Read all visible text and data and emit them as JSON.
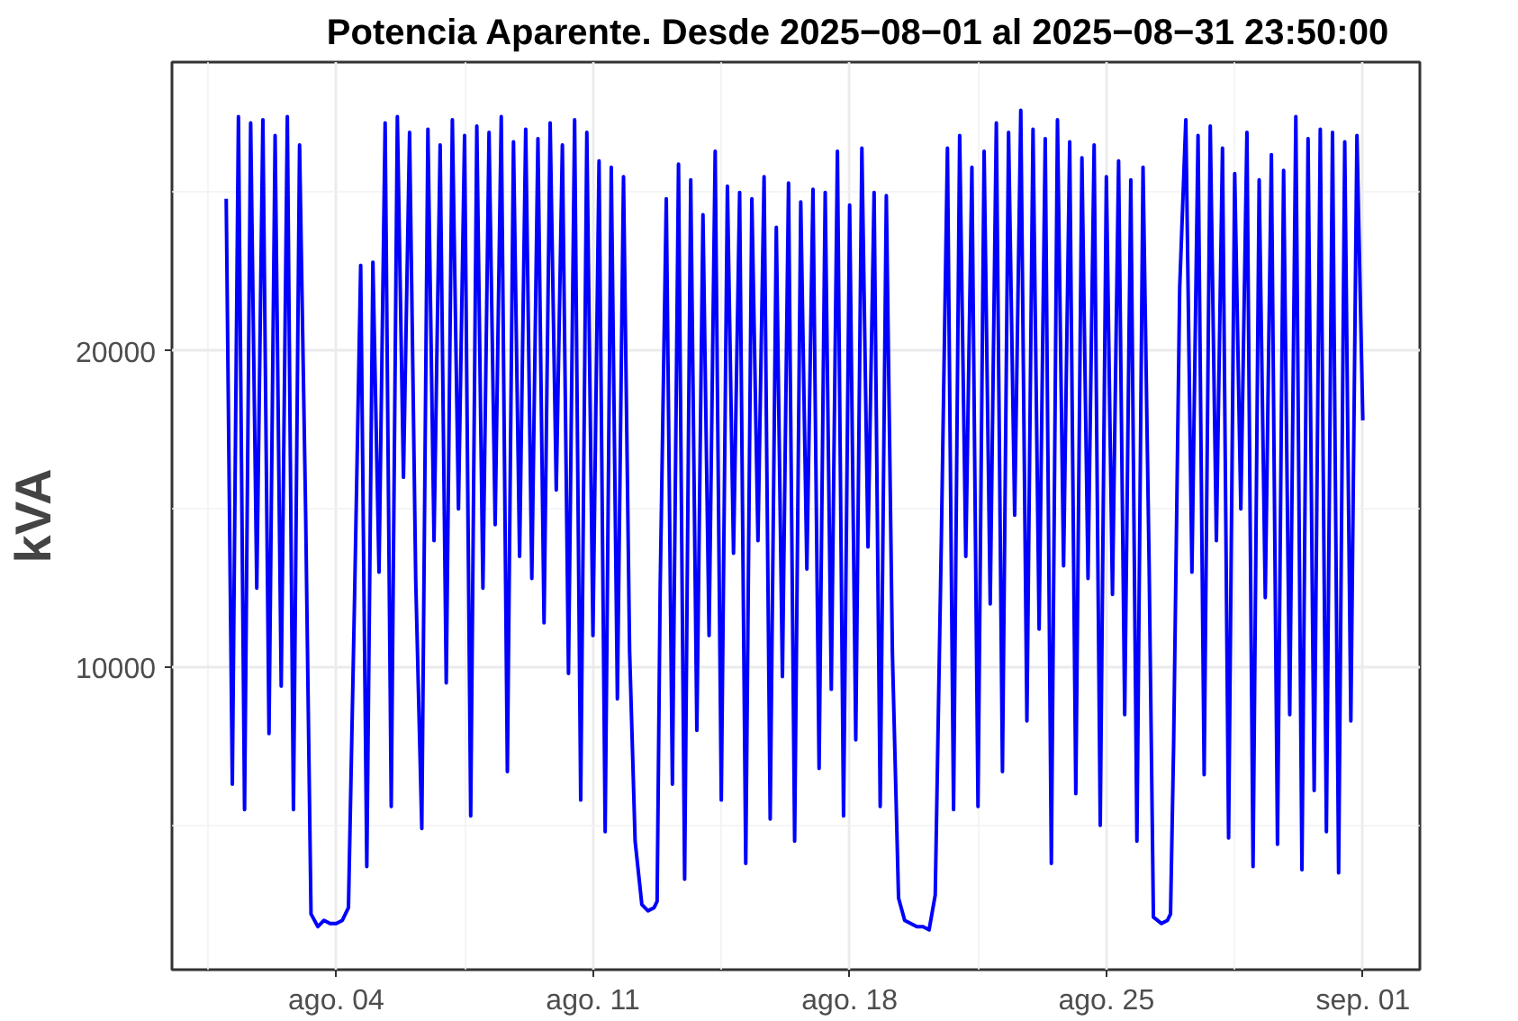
{
  "chart_data": {
    "type": "line",
    "title": "Potencia Aparente. Desde  2025−08−01  al  2025−08−31 23:50:00",
    "ylabel": "kVA",
    "xlim": [
      "2025-07-30T12:30",
      "2025-09-02T13:10"
    ],
    "ylim": [
      440,
      29120
    ],
    "xticks": [
      {
        "value": "2025-08-04",
        "label": "ago. 04"
      },
      {
        "value": "2025-08-11",
        "label": "ago. 11"
      },
      {
        "value": "2025-08-18",
        "label": "ago. 18"
      },
      {
        "value": "2025-08-25",
        "label": "ago. 25"
      },
      {
        "value": "2025-09-01",
        "label": "sep. 01"
      }
    ],
    "yticks": [
      10000,
      20000
    ],
    "grid": true,
    "marker": "none",
    "line_style": "solid",
    "series": [
      {
        "color": "#0000ff",
        "x": [
          "2025-08-01T00:00",
          "2025-08-01T04:00",
          "2025-08-01T08:00",
          "2025-08-01T12:00",
          "2025-08-01T16:00",
          "2025-08-01T20:00",
          "2025-08-02T00:00",
          "2025-08-02T04:00",
          "2025-08-02T08:00",
          "2025-08-02T12:00",
          "2025-08-02T16:00",
          "2025-08-02T20:00",
          "2025-08-03T00:00",
          "2025-08-03T04:00",
          "2025-08-03T07:30",
          "2025-08-03T12:00",
          "2025-08-03T16:00",
          "2025-08-03T20:00",
          "2025-08-04T00:00",
          "2025-08-04T04:00",
          "2025-08-04T08:00",
          "2025-08-04T12:00",
          "2025-08-04T16:00",
          "2025-08-04T20:00",
          "2025-08-05T00:00",
          "2025-08-05T04:00",
          "2025-08-05T08:00",
          "2025-08-05T12:00",
          "2025-08-05T16:00",
          "2025-08-05T20:00",
          "2025-08-06T00:00",
          "2025-08-06T04:00",
          "2025-08-06T08:00",
          "2025-08-06T12:00",
          "2025-08-06T16:00",
          "2025-08-06T20:00",
          "2025-08-07T00:00",
          "2025-08-07T04:00",
          "2025-08-07T08:00",
          "2025-08-07T12:00",
          "2025-08-07T16:00",
          "2025-08-07T20:00",
          "2025-08-08T00:00",
          "2025-08-08T04:00",
          "2025-08-08T08:00",
          "2025-08-08T12:00",
          "2025-08-08T16:00",
          "2025-08-08T20:00",
          "2025-08-09T00:00",
          "2025-08-09T04:00",
          "2025-08-09T08:00",
          "2025-08-09T12:00",
          "2025-08-09T16:00",
          "2025-08-09T20:00",
          "2025-08-10T00:00",
          "2025-08-10T04:00",
          "2025-08-10T08:00",
          "2025-08-10T12:00",
          "2025-08-10T16:00",
          "2025-08-10T20:00",
          "2025-08-11T00:00",
          "2025-08-11T04:00",
          "2025-08-11T08:00",
          "2025-08-11T12:00",
          "2025-08-11T16:00",
          "2025-08-11T20:00",
          "2025-08-12T00:00",
          "2025-08-12T03:36",
          "2025-08-12T08:00",
          "2025-08-12T12:00",
          "2025-08-12T16:00",
          "2025-08-12T18:00",
          "2025-08-12T20:00",
          "2025-08-13T00:00",
          "2025-08-13T04:00",
          "2025-08-13T08:00",
          "2025-08-13T12:00",
          "2025-08-13T16:00",
          "2025-08-13T20:00",
          "2025-08-14T00:00",
          "2025-08-14T04:00",
          "2025-08-14T08:00",
          "2025-08-14T12:00",
          "2025-08-14T16:00",
          "2025-08-14T20:00",
          "2025-08-15T00:00",
          "2025-08-15T04:00",
          "2025-08-15T08:00",
          "2025-08-15T12:00",
          "2025-08-15T16:00",
          "2025-08-15T20:00",
          "2025-08-16T00:00",
          "2025-08-16T04:00",
          "2025-08-16T08:00",
          "2025-08-16T12:00",
          "2025-08-16T16:00",
          "2025-08-16T20:00",
          "2025-08-17T00:00",
          "2025-08-17T04:00",
          "2025-08-17T08:00",
          "2025-08-17T12:00",
          "2025-08-17T16:00",
          "2025-08-17T20:00",
          "2025-08-18T00:00",
          "2025-08-18T04:00",
          "2025-08-18T08:00",
          "2025-08-18T12:00",
          "2025-08-18T16:00",
          "2025-08-18T20:00",
          "2025-08-19T00:00",
          "2025-08-19T04:00",
          "2025-08-19T08:00",
          "2025-08-19T12:00",
          "2025-08-19T16:00",
          "2025-08-19T20:00",
          "2025-08-20T00:00",
          "2025-08-20T04:00",
          "2025-08-20T08:00",
          "2025-08-20T12:00",
          "2025-08-20T16:00",
          "2025-08-20T20:00",
          "2025-08-21T00:00",
          "2025-08-21T04:00",
          "2025-08-21T08:00",
          "2025-08-21T12:00",
          "2025-08-21T16:00",
          "2025-08-21T20:00",
          "2025-08-22T00:00",
          "2025-08-22T04:00",
          "2025-08-22T08:00",
          "2025-08-22T12:00",
          "2025-08-22T16:00",
          "2025-08-22T20:00",
          "2025-08-23T00:00",
          "2025-08-23T04:00",
          "2025-08-23T08:00",
          "2025-08-23T12:00",
          "2025-08-23T16:00",
          "2025-08-23T20:00",
          "2025-08-24T00:00",
          "2025-08-24T04:00",
          "2025-08-24T08:00",
          "2025-08-24T12:00",
          "2025-08-24T16:00",
          "2025-08-24T20:00",
          "2025-08-25T00:00",
          "2025-08-25T04:00",
          "2025-08-25T08:00",
          "2025-08-25T12:00",
          "2025-08-25T16:00",
          "2025-08-25T20:00",
          "2025-08-26T00:00",
          "2025-08-26T04:00",
          "2025-08-26T06:48",
          "2025-08-26T12:00",
          "2025-08-26T16:00",
          "2025-08-26T18:00",
          "2025-08-26T20:00",
          "2025-08-27T00:00",
          "2025-08-27T04:00",
          "2025-08-27T08:00",
          "2025-08-27T12:00",
          "2025-08-27T16:00",
          "2025-08-27T20:00",
          "2025-08-28T00:00",
          "2025-08-28T04:00",
          "2025-08-28T08:00",
          "2025-08-28T12:00",
          "2025-08-28T16:00",
          "2025-08-28T20:00",
          "2025-08-29T00:00",
          "2025-08-29T04:00",
          "2025-08-29T08:00",
          "2025-08-29T12:00",
          "2025-08-29T16:00",
          "2025-08-29T20:00",
          "2025-08-30T00:00",
          "2025-08-30T04:00",
          "2025-08-30T08:00",
          "2025-08-30T12:00",
          "2025-08-30T16:00",
          "2025-08-30T20:00",
          "2025-08-31T00:00",
          "2025-08-31T04:00",
          "2025-08-31T08:00",
          "2025-08-31T12:00",
          "2025-08-31T16:00",
          "2025-08-31T20:00",
          "2025-08-31T23:50"
        ],
        "values": [
          24800,
          6300,
          27400,
          5500,
          27200,
          12500,
          27300,
          7900,
          26800,
          9400,
          27400,
          5500,
          26500,
          14800,
          2200,
          1800,
          2000,
          1900,
          1900,
          2000,
          2400,
          12200,
          22700,
          3700,
          22800,
          13000,
          27200,
          5600,
          27400,
          16000,
          26900,
          12800,
          4900,
          27000,
          14000,
          26500,
          9500,
          27300,
          15000,
          26800,
          5300,
          27100,
          12500,
          26900,
          14500,
          27400,
          6700,
          26600,
          13500,
          27000,
          12800,
          26700,
          11400,
          27200,
          15600,
          26500,
          9800,
          27300,
          5800,
          26900,
          11000,
          26000,
          4800,
          25800,
          9000,
          25500,
          10500,
          4500,
          2500,
          2300,
          2400,
          2600,
          12500,
          24800,
          6300,
          25900,
          3300,
          25400,
          8000,
          24300,
          11000,
          26300,
          5800,
          25200,
          13600,
          25000,
          3800,
          24800,
          14000,
          25500,
          5200,
          23900,
          9700,
          25300,
          4500,
          24700,
          13100,
          25100,
          6800,
          25000,
          9300,
          26300,
          5300,
          24600,
          7700,
          26400,
          13800,
          25000,
          5600,
          24900,
          10400,
          2700,
          2000,
          1900,
          1800,
          1800,
          1700,
          2800,
          14000,
          26400,
          5500,
          26800,
          13500,
          25800,
          5600,
          26300,
          12000,
          27200,
          6700,
          26900,
          14800,
          27600,
          8300,
          27000,
          11200,
          26700,
          3800,
          27300,
          13200,
          26600,
          6000,
          26100,
          12800,
          26500,
          5000,
          25500,
          12300,
          26000,
          8500,
          25400,
          4500,
          25800,
          13200,
          2100,
          1900,
          2000,
          2200,
          7500,
          22000,
          27300,
          13000,
          26800,
          6600,
          27100,
          14000,
          26400,
          4600,
          25600,
          15000,
          26900,
          3700,
          25400,
          12200,
          26200,
          4400,
          25700,
          8500,
          27400,
          3600,
          26700,
          6100,
          27000,
          4800,
          26900,
          3500,
          26600,
          8300,
          26800,
          17800
        ]
      }
    ]
  }
}
